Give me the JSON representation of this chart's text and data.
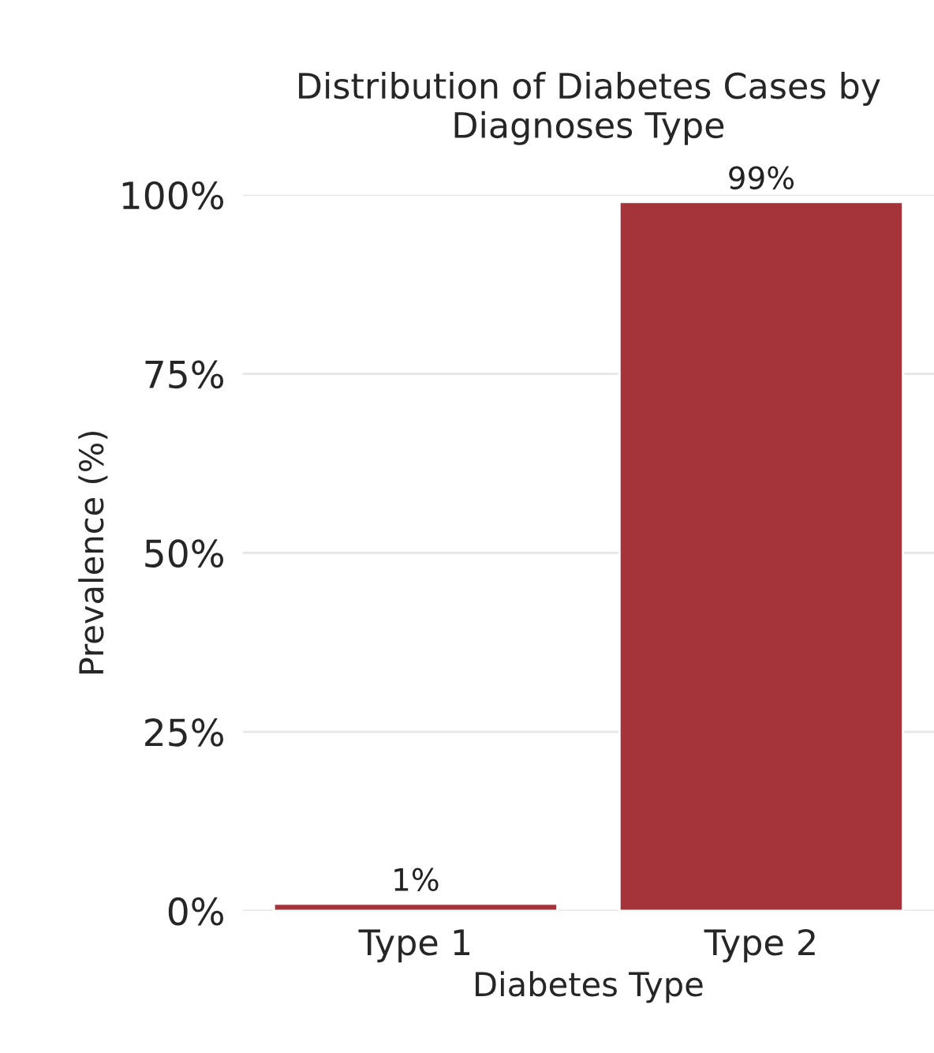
{
  "chart_data": {
    "type": "bar",
    "title": "Distribution of Diabetes Cases by\nDiagnoses Type",
    "xlabel": "Diabetes Type",
    "ylabel": "Prevalence (%)",
    "categories": [
      "Type 1",
      "Type 2"
    ],
    "values": [
      1,
      99
    ],
    "value_labels": [
      "1%",
      "99%"
    ],
    "color": "#a4343a",
    "ylim": [
      0,
      100
    ],
    "yticks": [
      {
        "value": 0,
        "label": "0%"
      },
      {
        "value": 25,
        "label": "25%"
      },
      {
        "value": 50,
        "label": "50%"
      },
      {
        "value": 75,
        "label": "75%"
      },
      {
        "value": 100,
        "label": "100%"
      }
    ],
    "grid": "y",
    "legend": false
  }
}
